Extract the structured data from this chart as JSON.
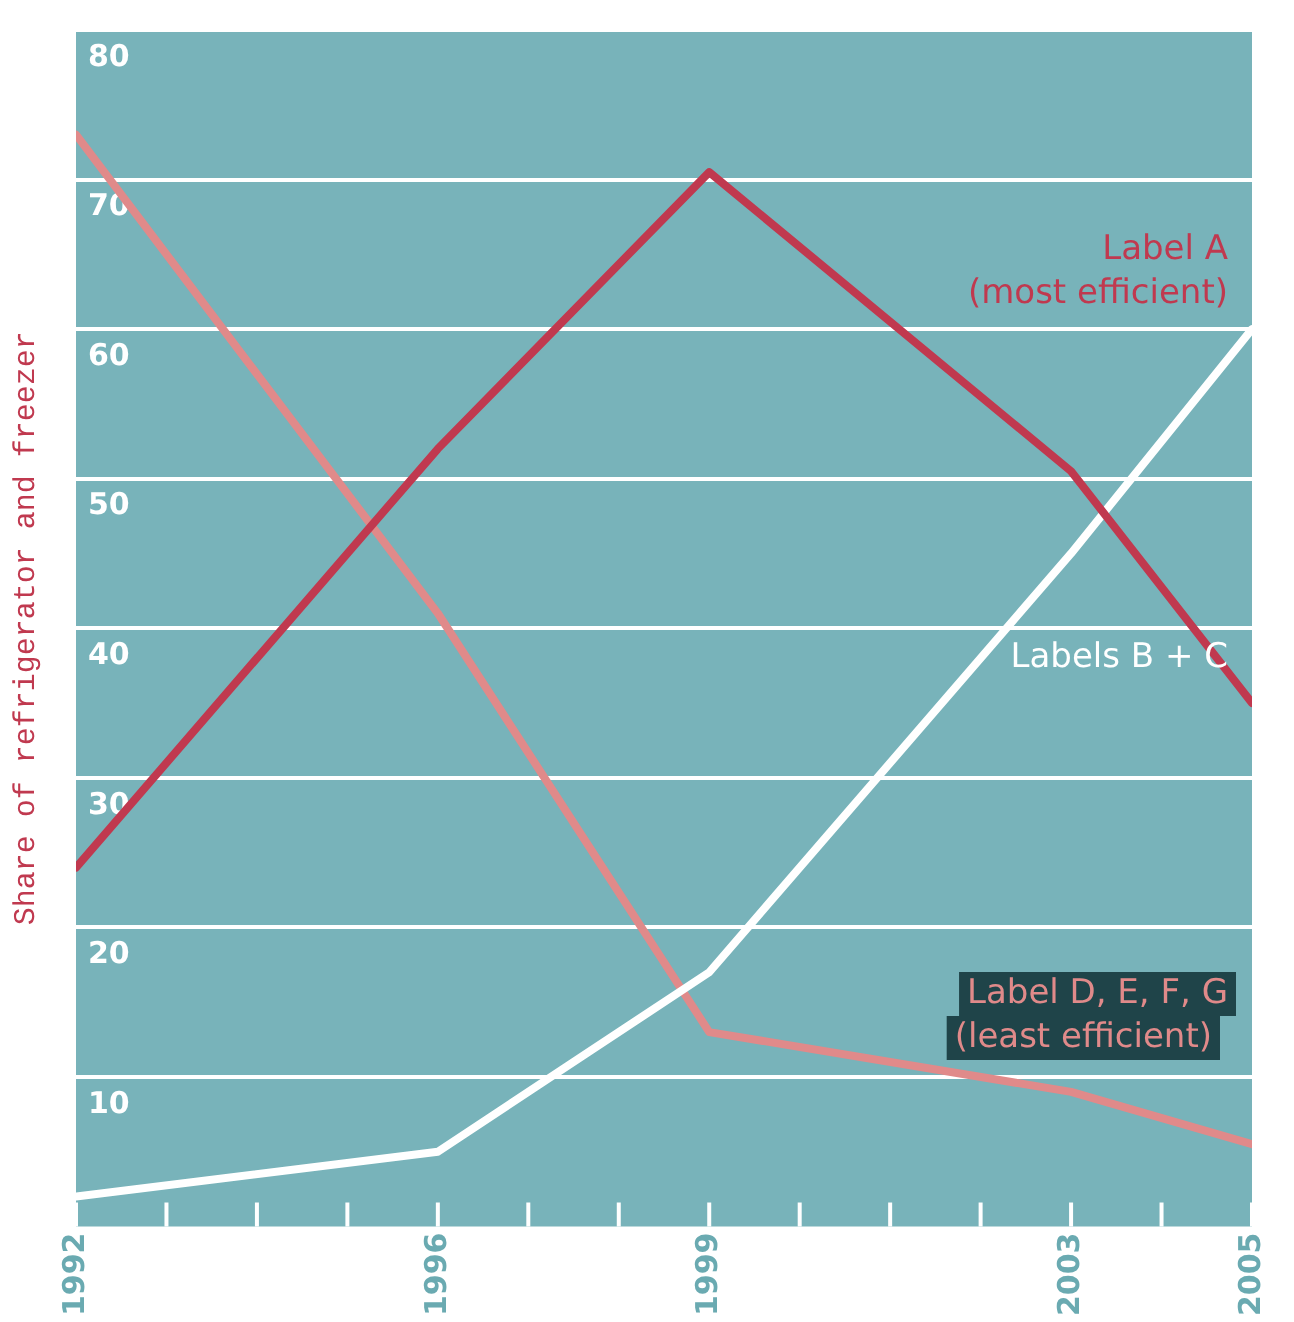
{
  "chart_data": {
    "type": "line",
    "ylabel": "Share of refrigerator and freezer",
    "x": [
      1992,
      1996,
      1999,
      2003,
      2005
    ],
    "xlim": [
      1992,
      2005
    ],
    "xticks": [
      1992,
      {
        "value": 1993,
        "label": null
      },
      {
        "value": 1994,
        "label": null
      },
      {
        "value": 1995,
        "label": null
      },
      1996,
      {
        "value": 1997,
        "label": null
      },
      {
        "value": 1998,
        "label": null
      },
      1999,
      {
        "value": 2000,
        "label": null
      },
      {
        "value": 2001,
        "label": null
      },
      {
        "value": 2002,
        "label": null
      },
      2003,
      {
        "value": 2004,
        "label": null
      },
      2005
    ],
    "ylim": [
      0,
      80
    ],
    "yticks": [
      10,
      20,
      30,
      40,
      50,
      60,
      70,
      80
    ],
    "series": [
      {
        "name": "Label A\n(most efficient)",
        "color": "#c0394f",
        "values": [
          24,
          52,
          70.5,
          50.5,
          35
        ]
      },
      {
        "name": "Labels B + C",
        "color": "#ffffff",
        "values": [
          2,
          5,
          17,
          45,
          60
        ]
      },
      {
        "name": "Label D, E, F, G\n(least efficient)",
        "color": "#e08a8a",
        "values": [
          73,
          41,
          13,
          9,
          5.5
        ]
      }
    ],
    "grid": "y",
    "legend": false,
    "marker": "none",
    "line_style": "solid"
  }
}
